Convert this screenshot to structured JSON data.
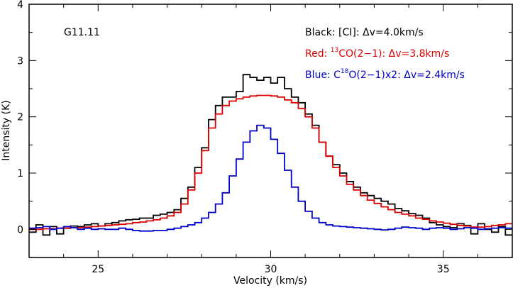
{
  "chart_data": {
    "type": "line",
    "step": true,
    "title": "",
    "xlabel": "Velocity (km/s)",
    "ylabel": "Intensity (K)",
    "xlim": [
      23,
      37
    ],
    "ylim": [
      -0.5,
      4
    ],
    "xticks": [
      25,
      30,
      35
    ],
    "yticks": [
      0,
      1,
      2,
      3,
      4
    ],
    "xtick_labels": [
      "25",
      "30",
      "35"
    ],
    "ytick_labels": [
      "0",
      "1",
      "2",
      "3",
      "4"
    ],
    "source_label": "G11.11",
    "legend": [
      {
        "text": "Black: [CI]: Δv=4.0km/s",
        "color": "#000000"
      },
      {
        "pre": "Red: ",
        "sup": "13",
        "post": "CO(2−1): Δv=3.8km/s",
        "color": "#dd0000"
      },
      {
        "pre": "Blue: C",
        "sup": "18",
        "post": "O(2−1)x2: Δv=2.4km/s",
        "color": "#0000cc"
      }
    ],
    "series": [
      {
        "name": "[CI]",
        "color": "#000000",
        "x": [
          23.0,
          23.2,
          23.4,
          23.6,
          23.8,
          24.0,
          24.2,
          24.4,
          24.6,
          24.8,
          25.0,
          25.2,
          25.4,
          25.6,
          25.8,
          26.0,
          26.2,
          26.4,
          26.6,
          26.8,
          27.0,
          27.2,
          27.4,
          27.6,
          27.8,
          28.0,
          28.2,
          28.4,
          28.6,
          28.8,
          29.0,
          29.2,
          29.4,
          29.6,
          29.8,
          30.0,
          30.2,
          30.4,
          30.6,
          30.8,
          31.0,
          31.2,
          31.4,
          31.6,
          31.8,
          32.0,
          32.2,
          32.4,
          32.6,
          32.8,
          33.0,
          33.2,
          33.4,
          33.6,
          33.8,
          34.0,
          34.2,
          34.4,
          34.6,
          34.8,
          35.0,
          35.2,
          35.4,
          35.6,
          35.8,
          36.0,
          36.2,
          36.4,
          36.6,
          36.8
        ],
        "values": [
          -0.05,
          0.08,
          -0.1,
          0.05,
          -0.08,
          0.02,
          0.06,
          0.05,
          0.08,
          0.1,
          0.06,
          0.1,
          0.12,
          0.15,
          0.17,
          0.18,
          0.2,
          0.2,
          0.25,
          0.27,
          0.3,
          0.35,
          0.55,
          0.75,
          1.1,
          1.45,
          1.95,
          2.2,
          2.35,
          2.35,
          2.45,
          2.75,
          2.7,
          2.65,
          2.7,
          2.6,
          2.7,
          2.5,
          2.35,
          2.25,
          2.05,
          1.85,
          1.55,
          1.3,
          1.15,
          1.0,
          0.85,
          0.75,
          0.65,
          0.6,
          0.55,
          0.5,
          0.45,
          0.37,
          0.33,
          0.28,
          0.25,
          0.2,
          0.12,
          0.08,
          0.05,
          0.03,
          0.1,
          0.07,
          -0.08,
          0.1,
          0.0,
          -0.05,
          0.05,
          -0.1
        ]
      },
      {
        "name": "13CO(2-1)",
        "color": "#dd0000",
        "x": [
          23.0,
          23.2,
          23.4,
          23.6,
          23.8,
          24.0,
          24.2,
          24.4,
          24.6,
          24.8,
          25.0,
          25.2,
          25.4,
          25.6,
          25.8,
          26.0,
          26.2,
          26.4,
          26.6,
          26.8,
          27.0,
          27.2,
          27.4,
          27.6,
          27.8,
          28.0,
          28.2,
          28.4,
          28.6,
          28.8,
          29.0,
          29.2,
          29.4,
          29.6,
          29.8,
          30.0,
          30.2,
          30.4,
          30.6,
          30.8,
          31.0,
          31.2,
          31.4,
          31.6,
          31.8,
          32.0,
          32.2,
          32.4,
          32.6,
          32.8,
          33.0,
          33.2,
          33.4,
          33.6,
          33.8,
          34.0,
          34.2,
          34.4,
          34.6,
          34.8,
          35.0,
          35.2,
          35.4,
          35.6,
          35.8,
          36.0,
          36.2,
          36.4,
          36.6,
          36.8
        ],
        "values": [
          0.0,
          0.0,
          0.01,
          0.01,
          0.02,
          0.02,
          0.03,
          0.03,
          0.04,
          0.05,
          0.06,
          0.07,
          0.08,
          0.09,
          0.1,
          0.12,
          0.13,
          0.15,
          0.17,
          0.2,
          0.24,
          0.3,
          0.45,
          0.7,
          1.0,
          1.4,
          1.8,
          2.05,
          2.2,
          2.28,
          2.32,
          2.35,
          2.37,
          2.38,
          2.38,
          2.37,
          2.35,
          2.3,
          2.25,
          2.15,
          2.0,
          1.8,
          1.55,
          1.3,
          1.1,
          0.95,
          0.8,
          0.7,
          0.6,
          0.52,
          0.46,
          0.4,
          0.35,
          0.3,
          0.27,
          0.24,
          0.2,
          0.18,
          0.15,
          0.13,
          0.11,
          0.09,
          0.07,
          0.06,
          0.04,
          0.04,
          0.05,
          0.07,
          0.08,
          0.1
        ]
      },
      {
        "name": "C18O(2-1)x2",
        "color": "#0000cc",
        "x": [
          23.0,
          23.2,
          23.4,
          23.6,
          23.8,
          24.0,
          24.2,
          24.4,
          24.6,
          24.8,
          25.0,
          25.2,
          25.4,
          25.6,
          25.8,
          26.0,
          26.2,
          26.4,
          26.6,
          26.8,
          27.0,
          27.2,
          27.4,
          27.6,
          27.8,
          28.0,
          28.2,
          28.4,
          28.6,
          28.8,
          29.0,
          29.2,
          29.4,
          29.6,
          29.8,
          30.0,
          30.2,
          30.4,
          30.6,
          30.8,
          31.0,
          31.2,
          31.4,
          31.6,
          31.8,
          32.0,
          32.2,
          32.4,
          32.6,
          32.8,
          33.0,
          33.2,
          33.4,
          33.6,
          33.8,
          34.0,
          34.2,
          34.4,
          34.6,
          34.8,
          35.0,
          35.2,
          35.4,
          35.6,
          35.8,
          36.0,
          36.2,
          36.4,
          36.6,
          36.8
        ],
        "values": [
          0.02,
          0.03,
          0.05,
          0.0,
          0.02,
          0.05,
          0.03,
          0.0,
          0.02,
          0.0,
          0.01,
          0.0,
          0.0,
          0.02,
          0.0,
          -0.02,
          -0.03,
          -0.03,
          -0.02,
          -0.02,
          0.0,
          0.02,
          0.05,
          0.08,
          0.12,
          0.2,
          0.3,
          0.45,
          0.65,
          0.95,
          1.25,
          1.55,
          1.75,
          1.85,
          1.8,
          1.6,
          1.35,
          1.05,
          0.75,
          0.5,
          0.32,
          0.2,
          0.12,
          0.08,
          0.06,
          0.05,
          0.04,
          0.03,
          0.02,
          0.01,
          0.0,
          -0.01,
          0.0,
          0.02,
          0.04,
          0.03,
          0.02,
          0.0,
          0.02,
          0.03,
          0.02,
          0.0,
          0.01,
          0.03,
          0.02,
          0.0,
          0.01,
          0.02,
          0.03,
          0.02
        ]
      }
    ]
  }
}
